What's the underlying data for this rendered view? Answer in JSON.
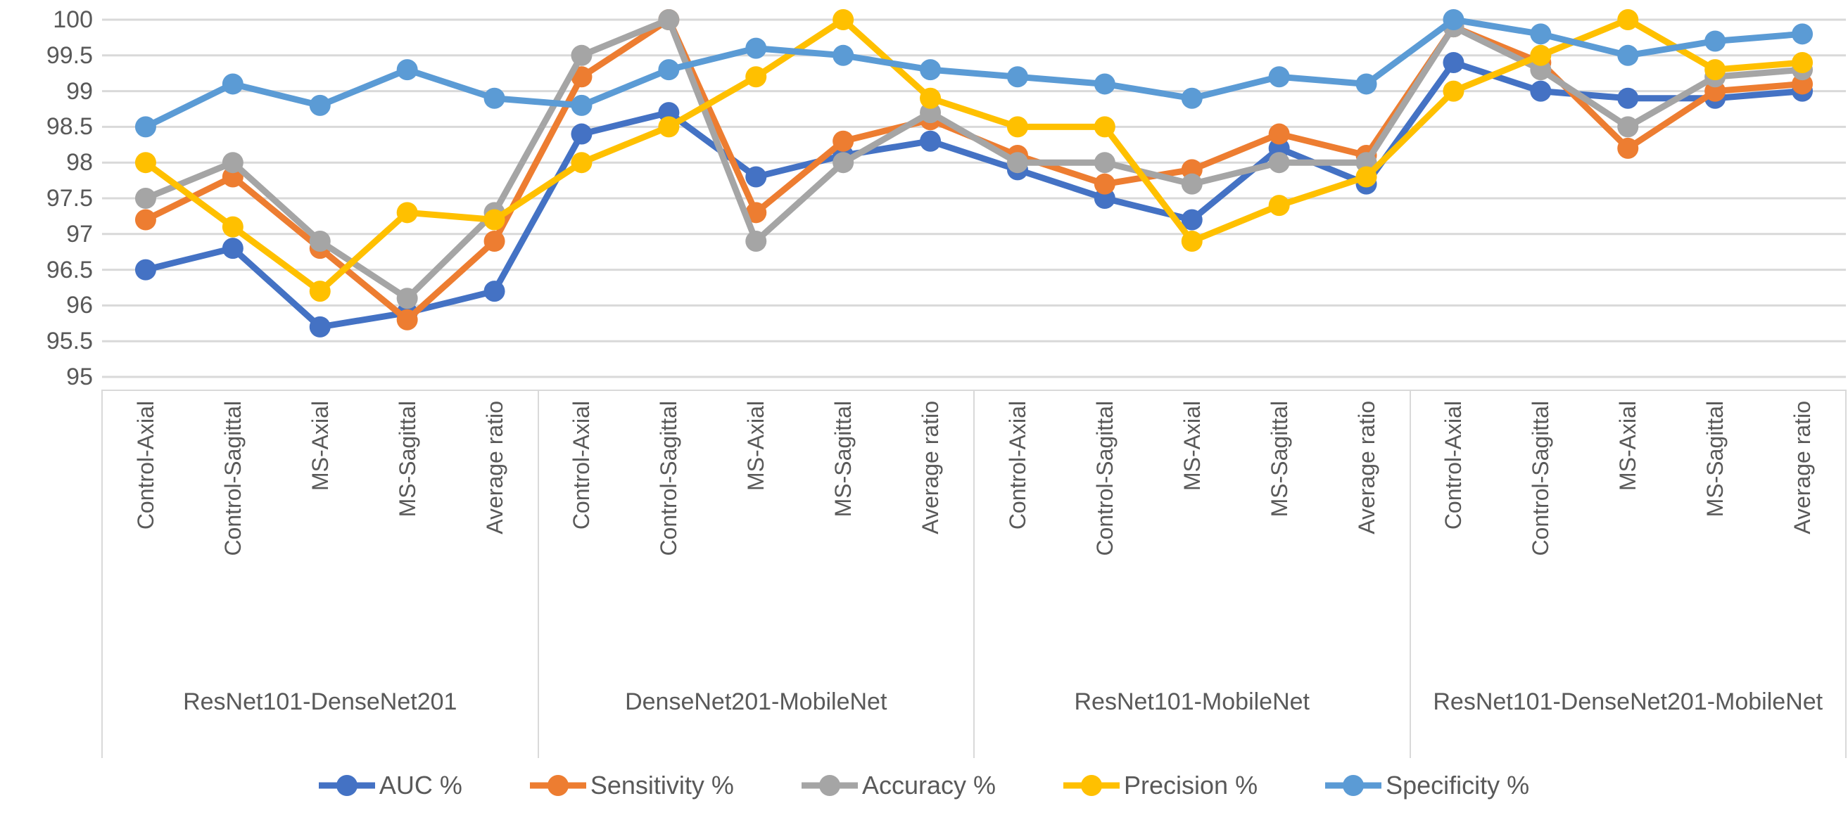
{
  "chart_data": {
    "type": "line",
    "title": "",
    "xlabel": "",
    "ylabel": "",
    "ylim": [
      95,
      100
    ],
    "y_tick_step": 0.5,
    "y_tick_labels": [
      "100",
      "99.5",
      "99",
      "98.5",
      "98",
      "97.5",
      "97",
      "96.5",
      "96",
      "95.5",
      "95"
    ],
    "grid": "horizontal",
    "legend_position": "bottom",
    "groups": [
      {
        "label": "ResNet101-DenseNet201",
        "categories": [
          "Control-Axial",
          "Control-Sagittal",
          "MS-Axial",
          "MS-Sagittal",
          "Average ratio"
        ]
      },
      {
        "label": "DenseNet201-MobileNet",
        "categories": [
          "Control-Axial",
          "Control-Sagittal",
          "MS-Axial",
          "MS-Sagittal",
          "Average ratio"
        ]
      },
      {
        "label": "ResNet101-MobileNet",
        "categories": [
          "Control-Axial",
          "Control-Sagittal",
          "MS-Axial",
          "MS-Sagittal",
          "Average ratio"
        ]
      },
      {
        "label": "ResNet101-DenseNet201-MobileNet",
        "categories": [
          "Control-Axial",
          "Control-Sagittal",
          "MS-Axial",
          "MS-Sagittal",
          "Average ratio"
        ]
      }
    ],
    "series": [
      {
        "name": "AUC %",
        "color": "#4472C4",
        "values": [
          96.5,
          96.8,
          95.7,
          95.9,
          96.2,
          98.4,
          98.7,
          97.8,
          98.1,
          98.3,
          97.9,
          97.5,
          97.2,
          98.2,
          97.7,
          99.4,
          99.0,
          98.9,
          98.9,
          99.0
        ]
      },
      {
        "name": "Sensitivity %",
        "color": "#ED7D31",
        "values": [
          97.2,
          97.8,
          96.8,
          95.8,
          96.9,
          99.2,
          100,
          97.3,
          98.3,
          98.6,
          98.1,
          97.7,
          97.9,
          98.4,
          98.1,
          99.9,
          99.4,
          98.2,
          99.0,
          99.1
        ]
      },
      {
        "name": "Accuracy %",
        "color": "#A5A5A5",
        "values": [
          97.5,
          98.0,
          96.9,
          96.1,
          97.3,
          99.5,
          100,
          96.9,
          98.0,
          98.7,
          98.0,
          98.0,
          97.7,
          98.0,
          98.0,
          99.9,
          99.3,
          98.5,
          99.2,
          99.3
        ]
      },
      {
        "name": "Precision %",
        "color": "#FFC000",
        "values": [
          98.0,
          97.1,
          96.2,
          97.3,
          97.2,
          98.0,
          98.5,
          99.2,
          100,
          98.9,
          98.5,
          98.5,
          96.9,
          97.4,
          97.8,
          99.0,
          99.5,
          100,
          99.3,
          99.4
        ]
      },
      {
        "name": "Specificity %",
        "color": "#5B9BD5",
        "values": [
          98.5,
          99.1,
          98.8,
          99.3,
          98.9,
          98.8,
          99.3,
          99.6,
          99.5,
          99.3,
          99.2,
          99.1,
          98.9,
          99.2,
          99.1,
          100,
          99.8,
          99.5,
          99.7,
          99.8
        ]
      }
    ],
    "style": {
      "gridline_color": "#d9d9d9",
      "text_color": "#595959",
      "line_width": 9,
      "marker_radius": 15
    }
  }
}
